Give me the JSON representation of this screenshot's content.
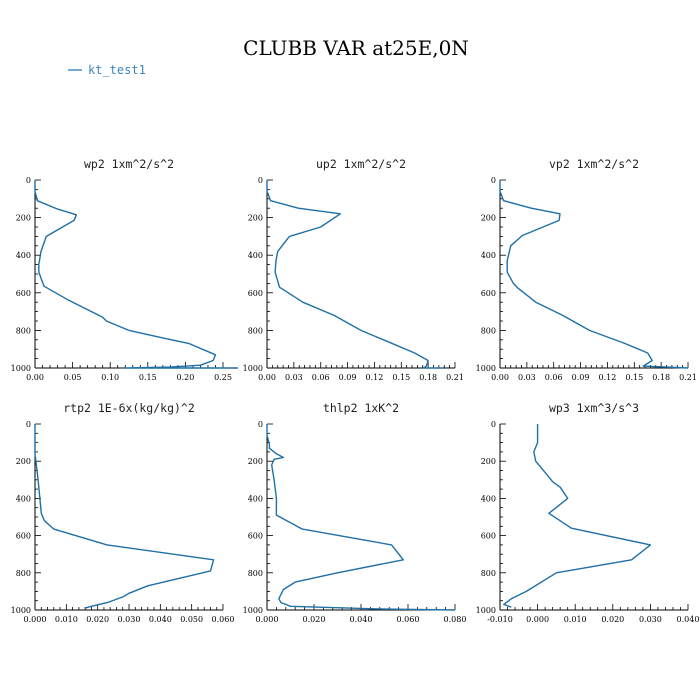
{
  "title": "CLUBB VAR at25E,0N",
  "legend": [
    {
      "name": "kt_test1",
      "color": "#3b86bd"
    }
  ],
  "colors": {
    "series": "#1f6fa8",
    "legend": "#3b86bd"
  },
  "chart_data": [
    {
      "type": "line",
      "title": "wp2  1xm^2/s^2",
      "xlim": [
        0,
        0.25
      ],
      "xticks": [
        0.0,
        0.05,
        0.1,
        0.15,
        0.2,
        0.25
      ],
      "xtick_labels": [
        "0.00",
        "0.05",
        "0.10",
        "0.15",
        "0.20",
        "0.25"
      ],
      "ylim": [
        1000,
        0
      ],
      "yticks": [
        0,
        200,
        400,
        600,
        800,
        1000
      ],
      "ytick_labels": [
        "0",
        "200",
        "400",
        "600",
        "800",
        "1000"
      ],
      "series": [
        {
          "x": [
            0.0,
            0.0,
            0.003,
            0.03,
            0.055,
            0.052,
            0.015,
            0.008,
            0.005,
            0.005,
            0.012,
            0.045,
            0.09,
            0.095,
            0.125,
            0.17,
            0.205,
            0.24,
            0.237,
            0.22,
            0.18,
            0.12,
            0.27
          ],
          "y": [
            0,
            60,
            110,
            155,
            185,
            215,
            300,
            380,
            450,
            490,
            565,
            640,
            730,
            750,
            800,
            840,
            870,
            930,
            960,
            985,
            995,
            1000,
            1000
          ]
        }
      ]
    },
    {
      "type": "line",
      "title": "up2  1xm^2/s^2",
      "xlim": [
        0,
        0.21
      ],
      "xticks": [
        0.0,
        0.03,
        0.06,
        0.09,
        0.12,
        0.15,
        0.18,
        0.21
      ],
      "xtick_labels": [
        "0.00",
        "0.03",
        "0.06",
        "0.09",
        "0.12",
        "0.15",
        "0.18",
        "0.21"
      ],
      "ylim": [
        1000,
        0
      ],
      "yticks": [
        0,
        200,
        400,
        600,
        800,
        1000
      ],
      "ytick_labels": [
        "0",
        "200",
        "400",
        "600",
        "800",
        "1000"
      ],
      "series": [
        {
          "x": [
            0.0,
            0.0,
            0.004,
            0.035,
            0.082,
            0.06,
            0.025,
            0.012,
            0.01,
            0.009,
            0.014,
            0.04,
            0.075,
            0.105,
            0.135,
            0.165,
            0.18,
            0.178,
            0.175,
            0.195
          ],
          "y": [
            0,
            60,
            110,
            150,
            180,
            250,
            300,
            380,
            430,
            490,
            570,
            650,
            720,
            800,
            860,
            920,
            960,
            990,
            1000,
            1000
          ]
        }
      ]
    },
    {
      "type": "line",
      "title": "vp2  1xm^2/s^2",
      "xlim": [
        0,
        0.21
      ],
      "xticks": [
        0.0,
        0.03,
        0.06,
        0.09,
        0.12,
        0.15,
        0.18,
        0.21
      ],
      "xtick_labels": [
        "0.00",
        "0.03",
        "0.06",
        "0.09",
        "0.12",
        "0.15",
        "0.18",
        "0.21"
      ],
      "ylim": [
        1000,
        0
      ],
      "yticks": [
        0,
        200,
        400,
        600,
        800,
        1000
      ],
      "ytick_labels": [
        "0",
        "200",
        "400",
        "600",
        "800",
        "1000"
      ],
      "series": [
        {
          "x": [
            0.0,
            0.0,
            0.004,
            0.035,
            0.067,
            0.066,
            0.025,
            0.012,
            0.008,
            0.008,
            0.015,
            0.02,
            0.04,
            0.07,
            0.1,
            0.14,
            0.165,
            0.17,
            0.16,
            0.21
          ],
          "y": [
            0,
            60,
            110,
            150,
            180,
            215,
            295,
            350,
            430,
            490,
            550,
            575,
            650,
            720,
            800,
            870,
            920,
            960,
            990,
            1000
          ]
        }
      ]
    },
    {
      "type": "line",
      "title": "rtp2  1E-6x(kg/kg)^2",
      "xlim": [
        0,
        0.06
      ],
      "xticks": [
        0.0,
        0.01,
        0.02,
        0.03,
        0.04,
        0.05,
        0.06
      ],
      "xtick_labels": [
        "0.000",
        "0.010",
        "0.020",
        "0.030",
        "0.040",
        "0.050",
        "0.060"
      ],
      "ylim": [
        1000,
        0
      ],
      "yticks": [
        0,
        200,
        400,
        600,
        800,
        1000
      ],
      "ytick_labels": [
        "0",
        "200",
        "400",
        "600",
        "800",
        "1000"
      ],
      "series": [
        {
          "x": [
            0.0,
            0.0,
            0.001,
            0.002,
            0.003,
            0.006,
            0.023,
            0.057,
            0.056,
            0.036,
            0.03,
            0.028,
            0.023,
            0.018,
            0.016
          ],
          "y": [
            0,
            160,
            300,
            480,
            520,
            565,
            650,
            730,
            790,
            870,
            910,
            930,
            960,
            980,
            990
          ]
        }
      ]
    },
    {
      "type": "line",
      "title": "thlp2  1xK^2",
      "xlim": [
        0,
        0.08
      ],
      "xticks": [
        0.0,
        0.02,
        0.04,
        0.06,
        0.08
      ],
      "xtick_labels": [
        "0.000",
        "0.020",
        "0.040",
        "0.060",
        "0.080"
      ],
      "ylim": [
        1000,
        0
      ],
      "yticks": [
        0,
        200,
        400,
        600,
        800,
        1000
      ],
      "ytick_labels": [
        "0",
        "200",
        "400",
        "600",
        "800",
        "1000"
      ],
      "series": [
        {
          "x": [
            0.0,
            0.0,
            0.001,
            0.001,
            0.004,
            0.007,
            0.003,
            0.002,
            0.003,
            0.004,
            0.004,
            0.015,
            0.053,
            0.058,
            0.03,
            0.012,
            0.007,
            0.005,
            0.006,
            0.01,
            0.05,
            0.08
          ],
          "y": [
            0,
            60,
            110,
            130,
            160,
            180,
            190,
            220,
            300,
            400,
            490,
            565,
            650,
            730,
            800,
            850,
            890,
            940,
            960,
            980,
            995,
            1000
          ]
        }
      ]
    },
    {
      "type": "line",
      "title": "wp3  1xm^3/s^3",
      "xlim": [
        -0.01,
        0.04
      ],
      "xticks": [
        -0.01,
        0.0,
        0.01,
        0.02,
        0.03,
        0.04
      ],
      "xtick_labels": [
        "-0.010",
        "0.000",
        "0.010",
        "0.020",
        "0.030",
        "0.040"
      ],
      "ylim": [
        1000,
        0
      ],
      "yticks": [
        0,
        200,
        400,
        600,
        800,
        1000
      ],
      "ytick_labels": [
        "0",
        "200",
        "400",
        "600",
        "800",
        "1000"
      ],
      "series": [
        {
          "x": [
            0.0,
            0.0,
            -0.001,
            -0.0005,
            0.002,
            0.004,
            0.006,
            0.008,
            0.003,
            0.009,
            0.03,
            0.025,
            0.005,
            -0.003,
            -0.007,
            -0.009,
            -0.007
          ],
          "y": [
            0,
            100,
            150,
            200,
            260,
            310,
            340,
            400,
            480,
            560,
            650,
            730,
            800,
            900,
            940,
            970,
            985
          ]
        }
      ]
    }
  ]
}
